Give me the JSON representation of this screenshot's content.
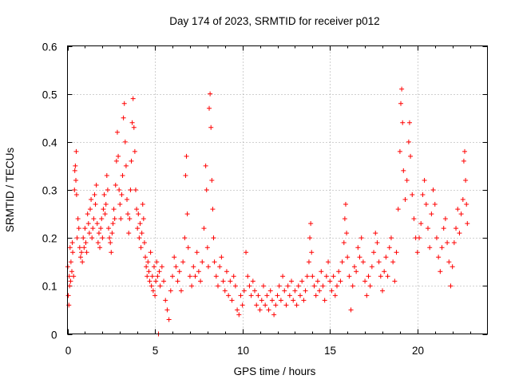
{
  "chart_data": {
    "type": "scatter",
    "title": "Day 174 of 2023, SRMTID for receiver p012",
    "xlabel": "GPS time / hours",
    "ylabel": "SRMTID / TECUs",
    "xlim": [
      0,
      24
    ],
    "ylim": [
      0,
      0.6
    ],
    "xticks": [
      0,
      5,
      10,
      15,
      20
    ],
    "yticks": [
      0,
      0.1,
      0.2,
      0.3,
      0.4,
      0.5,
      0.6
    ],
    "x_tick_labels": [
      "0",
      "5",
      "10",
      "15",
      "20"
    ],
    "y_tick_labels": [
      "0",
      "0.1",
      "0.2",
      "0.3",
      "0.4",
      "0.5",
      "0.6"
    ],
    "grid": true,
    "marker": "+",
    "color": "#ff0000",
    "series": [
      {
        "name": "SRMTID",
        "points": [
          [
            0.02,
            0.14
          ],
          [
            0.05,
            0.08
          ],
          [
            0.08,
            0.06
          ],
          [
            0.1,
            0.12
          ],
          [
            0.12,
            0.1
          ],
          [
            0.15,
            0.18
          ],
          [
            0.18,
            0.11
          ],
          [
            0.2,
            0.15
          ],
          [
            0.25,
            0.13
          ],
          [
            0.28,
            0.19
          ],
          [
            0.3,
            0.17
          ],
          [
            0.35,
            0.12
          ],
          [
            0.4,
            0.3
          ],
          [
            0.42,
            0.34
          ],
          [
            0.45,
            0.35
          ],
          [
            0.48,
            0.32
          ],
          [
            0.5,
            0.38
          ],
          [
            0.52,
            0.29
          ],
          [
            0.55,
            0.2
          ],
          [
            0.6,
            0.24
          ],
          [
            0.65,
            0.22
          ],
          [
            0.7,
            0.18
          ],
          [
            0.75,
            0.16
          ],
          [
            0.8,
            0.17
          ],
          [
            0.85,
            0.15
          ],
          [
            0.9,
            0.2
          ],
          [
            0.95,
            0.18
          ],
          [
            1.0,
            0.22
          ],
          [
            1.05,
            0.19
          ],
          [
            1.1,
            0.17
          ],
          [
            1.15,
            0.25
          ],
          [
            1.2,
            0.23
          ],
          [
            1.25,
            0.21
          ],
          [
            1.3,
            0.26
          ],
          [
            1.35,
            0.28
          ],
          [
            1.4,
            0.2
          ],
          [
            1.45,
            0.22
          ],
          [
            1.5,
            0.24
          ],
          [
            1.55,
            0.29
          ],
          [
            1.6,
            0.27
          ],
          [
            1.65,
            0.31
          ],
          [
            1.7,
            0.23
          ],
          [
            1.75,
            0.19
          ],
          [
            1.8,
            0.21
          ],
          [
            1.85,
            0.18
          ],
          [
            1.9,
            0.22
          ],
          [
            1.95,
            0.24
          ],
          [
            2.0,
            0.2
          ],
          [
            2.05,
            0.26
          ],
          [
            2.1,
            0.29
          ],
          [
            2.15,
            0.25
          ],
          [
            2.2,
            0.27
          ],
          [
            2.25,
            0.33
          ],
          [
            2.3,
            0.3
          ],
          [
            2.35,
            0.22
          ],
          [
            2.4,
            0.2
          ],
          [
            2.45,
            0.19
          ],
          [
            2.5,
            0.17
          ],
          [
            2.55,
            0.21
          ],
          [
            2.6,
            0.23
          ],
          [
            2.65,
            0.26
          ],
          [
            2.7,
            0.24
          ],
          [
            2.75,
            0.31
          ],
          [
            2.8,
            0.36
          ],
          [
            2.85,
            0.42
          ],
          [
            2.9,
            0.37
          ],
          [
            2.95,
            0.3
          ],
          [
            3.0,
            0.27
          ],
          [
            3.05,
            0.24
          ],
          [
            3.1,
            0.29
          ],
          [
            3.15,
            0.33
          ],
          [
            3.2,
            0.45
          ],
          [
            3.25,
            0.48
          ],
          [
            3.3,
            0.4
          ],
          [
            3.35,
            0.35
          ],
          [
            3.4,
            0.28
          ],
          [
            3.45,
            0.25
          ],
          [
            3.5,
            0.21
          ],
          [
            3.55,
            0.24
          ],
          [
            3.6,
            0.3
          ],
          [
            3.65,
            0.36
          ],
          [
            3.7,
            0.44
          ],
          [
            3.75,
            0.49
          ],
          [
            3.8,
            0.43
          ],
          [
            3.85,
            0.38
          ],
          [
            3.9,
            0.3
          ],
          [
            3.95,
            0.26
          ],
          [
            4.0,
            0.22
          ],
          [
            4.05,
            0.25
          ],
          [
            4.1,
            0.2
          ],
          [
            4.15,
            0.23
          ],
          [
            4.2,
            0.18
          ],
          [
            4.25,
            0.21
          ],
          [
            4.3,
            0.27
          ],
          [
            4.35,
            0.24
          ],
          [
            4.4,
            0.19
          ],
          [
            4.45,
            0.16
          ],
          [
            4.5,
            0.14
          ],
          [
            4.55,
            0.12
          ],
          [
            4.6,
            0.15
          ],
          [
            4.65,
            0.13
          ],
          [
            4.7,
            0.11
          ],
          [
            4.75,
            0.17
          ],
          [
            4.8,
            0.1
          ],
          [
            4.85,
            0.12
          ],
          [
            4.9,
            0.09
          ],
          [
            4.95,
            0.14
          ],
          [
            5.0,
            0.08
          ],
          [
            5.05,
            0.11
          ],
          [
            5.1,
            0.15
          ],
          [
            5.15,
            0.12
          ],
          [
            5.2,
            0.0
          ],
          [
            5.25,
            0.13
          ],
          [
            5.3,
            0.1
          ],
          [
            5.4,
            0.14
          ],
          [
            5.5,
            0.11
          ],
          [
            5.6,
            0.07
          ],
          [
            5.7,
            0.05
          ],
          [
            5.8,
            0.03
          ],
          [
            5.9,
            0.09
          ],
          [
            6.0,
            0.12
          ],
          [
            6.1,
            0.16
          ],
          [
            6.2,
            0.14
          ],
          [
            6.3,
            0.11
          ],
          [
            6.4,
            0.13
          ],
          [
            6.5,
            0.09
          ],
          [
            6.6,
            0.15
          ],
          [
            6.7,
            0.2
          ],
          [
            6.75,
            0.33
          ],
          [
            6.8,
            0.37
          ],
          [
            6.85,
            0.25
          ],
          [
            6.9,
            0.18
          ],
          [
            7.0,
            0.12
          ],
          [
            7.1,
            0.1
          ],
          [
            7.2,
            0.14
          ],
          [
            7.3,
            0.12
          ],
          [
            7.4,
            0.17
          ],
          [
            7.5,
            0.13
          ],
          [
            7.6,
            0.11
          ],
          [
            7.7,
            0.15
          ],
          [
            7.8,
            0.22
          ],
          [
            7.9,
            0.35
          ],
          [
            7.95,
            0.3
          ],
          [
            8.0,
            0.18
          ],
          [
            8.05,
            0.14
          ],
          [
            8.1,
            0.47
          ],
          [
            8.15,
            0.5
          ],
          [
            8.2,
            0.43
          ],
          [
            8.25,
            0.32
          ],
          [
            8.3,
            0.26
          ],
          [
            8.35,
            0.2
          ],
          [
            8.4,
            0.15
          ],
          [
            8.5,
            0.12
          ],
          [
            8.6,
            0.1
          ],
          [
            8.7,
            0.14
          ],
          [
            8.8,
            0.16
          ],
          [
            8.9,
            0.11
          ],
          [
            9.0,
            0.09
          ],
          [
            9.1,
            0.13
          ],
          [
            9.2,
            0.08
          ],
          [
            9.3,
            0.11
          ],
          [
            9.4,
            0.07
          ],
          [
            9.5,
            0.12
          ],
          [
            9.6,
            0.1
          ],
          [
            9.7,
            0.05
          ],
          [
            9.8,
            0.04
          ],
          [
            9.9,
            0.08
          ],
          [
            10.0,
            0.06
          ],
          [
            10.1,
            0.09
          ],
          [
            10.2,
            0.17
          ],
          [
            10.3,
            0.12
          ],
          [
            10.4,
            0.1
          ],
          [
            10.5,
            0.08
          ],
          [
            10.6,
            0.11
          ],
          [
            10.7,
            0.09
          ],
          [
            10.8,
            0.06
          ],
          [
            10.9,
            0.08
          ],
          [
            11.0,
            0.05
          ],
          [
            11.1,
            0.07
          ],
          [
            11.2,
            0.1
          ],
          [
            11.3,
            0.06
          ],
          [
            11.4,
            0.08
          ],
          [
            11.5,
            0.05
          ],
          [
            11.6,
            0.09
          ],
          [
            11.7,
            0.07
          ],
          [
            11.8,
            0.04
          ],
          [
            11.9,
            0.06
          ],
          [
            12.0,
            0.08
          ],
          [
            12.1,
            0.1
          ],
          [
            12.2,
            0.07
          ],
          [
            12.3,
            0.12
          ],
          [
            12.4,
            0.09
          ],
          [
            12.5,
            0.06
          ],
          [
            12.6,
            0.1
          ],
          [
            12.7,
            0.08
          ],
          [
            12.8,
            0.11
          ],
          [
            12.9,
            0.07
          ],
          [
            13.0,
            0.09
          ],
          [
            13.1,
            0.06
          ],
          [
            13.2,
            0.1
          ],
          [
            13.3,
            0.08
          ],
          [
            13.4,
            0.11
          ],
          [
            13.5,
            0.07
          ],
          [
            13.6,
            0.09
          ],
          [
            13.7,
            0.12
          ],
          [
            13.8,
            0.15
          ],
          [
            13.85,
            0.2
          ],
          [
            13.9,
            0.23
          ],
          [
            13.95,
            0.17
          ],
          [
            14.0,
            0.12
          ],
          [
            14.1,
            0.1
          ],
          [
            14.2,
            0.08
          ],
          [
            14.3,
            0.11
          ],
          [
            14.4,
            0.09
          ],
          [
            14.5,
            0.13
          ],
          [
            14.6,
            0.1
          ],
          [
            14.7,
            0.07
          ],
          [
            14.8,
            0.12
          ],
          [
            14.9,
            0.15
          ],
          [
            15.0,
            0.11
          ],
          [
            15.1,
            0.09
          ],
          [
            15.2,
            0.12
          ],
          [
            15.3,
            0.08
          ],
          [
            15.4,
            0.1
          ],
          [
            15.5,
            0.13
          ],
          [
            15.6,
            0.11
          ],
          [
            15.7,
            0.15
          ],
          [
            15.8,
            0.19
          ],
          [
            15.85,
            0.24
          ],
          [
            15.9,
            0.27
          ],
          [
            15.95,
            0.21
          ],
          [
            16.0,
            0.16
          ],
          [
            16.1,
            0.12
          ],
          [
            16.2,
            0.05
          ],
          [
            16.3,
            0.1
          ],
          [
            16.4,
            0.14
          ],
          [
            16.5,
            0.13
          ],
          [
            16.6,
            0.18
          ],
          [
            16.7,
            0.16
          ],
          [
            16.8,
            0.2
          ],
          [
            16.9,
            0.15
          ],
          [
            17.0,
            0.11
          ],
          [
            17.1,
            0.08
          ],
          [
            17.2,
            0.12
          ],
          [
            17.3,
            0.1
          ],
          [
            17.4,
            0.14
          ],
          [
            17.5,
            0.17
          ],
          [
            17.6,
            0.21
          ],
          [
            17.7,
            0.19
          ],
          [
            17.8,
            0.15
          ],
          [
            17.9,
            0.12
          ],
          [
            18.0,
            0.09
          ],
          [
            18.1,
            0.13
          ],
          [
            18.2,
            0.16
          ],
          [
            18.3,
            0.12
          ],
          [
            18.4,
            0.18
          ],
          [
            18.5,
            0.2
          ],
          [
            18.6,
            0.15
          ],
          [
            18.7,
            0.11
          ],
          [
            18.8,
            0.17
          ],
          [
            18.9,
            0.26
          ],
          [
            19.0,
            0.38
          ],
          [
            19.05,
            0.48
          ],
          [
            19.1,
            0.51
          ],
          [
            19.15,
            0.44
          ],
          [
            19.2,
            0.34
          ],
          [
            19.3,
            0.28
          ],
          [
            19.4,
            0.32
          ],
          [
            19.5,
            0.4
          ],
          [
            19.55,
            0.44
          ],
          [
            19.6,
            0.37
          ],
          [
            19.7,
            0.29
          ],
          [
            19.8,
            0.24
          ],
          [
            19.9,
            0.2
          ],
          [
            20.0,
            0.17
          ],
          [
            20.1,
            0.2
          ],
          [
            20.2,
            0.23
          ],
          [
            20.3,
            0.29
          ],
          [
            20.4,
            0.32
          ],
          [
            20.5,
            0.27
          ],
          [
            20.6,
            0.22
          ],
          [
            20.7,
            0.18
          ],
          [
            20.8,
            0.25
          ],
          [
            20.9,
            0.3
          ],
          [
            21.0,
            0.27
          ],
          [
            21.1,
            0.2
          ],
          [
            21.2,
            0.16
          ],
          [
            21.3,
            0.13
          ],
          [
            21.4,
            0.18
          ],
          [
            21.5,
            0.22
          ],
          [
            21.6,
            0.24
          ],
          [
            21.7,
            0.19
          ],
          [
            21.8,
            0.15
          ],
          [
            21.9,
            0.1
          ],
          [
            22.0,
            0.14
          ],
          [
            22.1,
            0.19
          ],
          [
            22.2,
            0.22
          ],
          [
            22.3,
            0.26
          ],
          [
            22.4,
            0.21
          ],
          [
            22.5,
            0.25
          ],
          [
            22.6,
            0.28
          ],
          [
            22.65,
            0.36
          ],
          [
            22.7,
            0.38
          ],
          [
            22.75,
            0.32
          ],
          [
            22.8,
            0.27
          ],
          [
            22.85,
            0.23
          ]
        ]
      }
    ]
  }
}
